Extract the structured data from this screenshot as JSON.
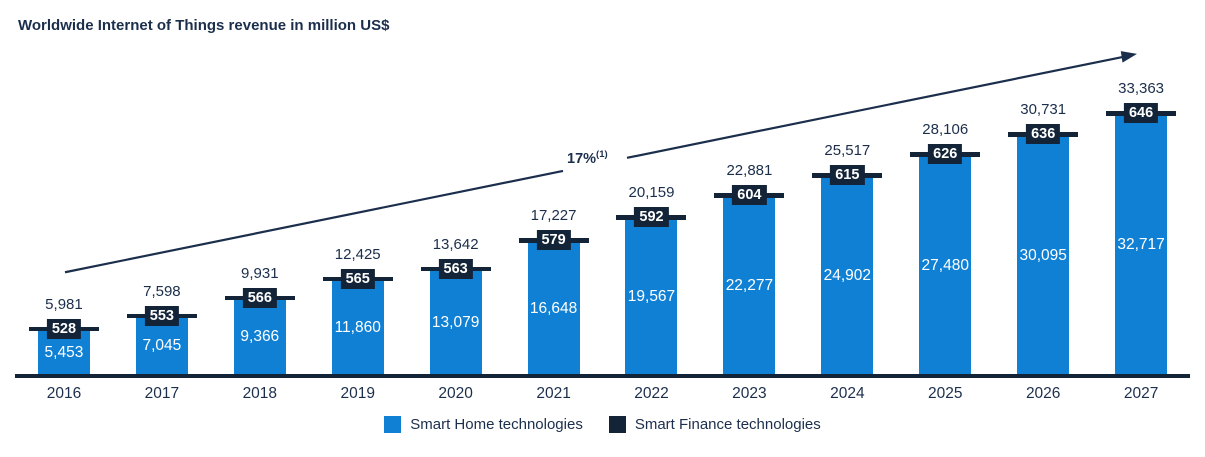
{
  "title": "Worldwide Internet of Things revenue in million US$",
  "annotation": {
    "growth_label": "17%",
    "growth_superscript": "(1)"
  },
  "colors": {
    "home_blue": "#0f80d4",
    "finance_navy": "#142438",
    "text_navy": "#1b2e4b",
    "label_text_white": "#ffffff"
  },
  "legend": [
    {
      "label": "Smart Home technologies",
      "color": "#0f80d4"
    },
    {
      "label": "Smart Finance technologies",
      "color": "#142438"
    }
  ],
  "bars": [
    {
      "year": "2016",
      "total": "5,981",
      "finance": "528",
      "home": "5,453"
    },
    {
      "year": "2017",
      "total": "7,598",
      "finance": "553",
      "home": "7,045"
    },
    {
      "year": "2018",
      "total": "9,931",
      "finance": "566",
      "home": "9,366"
    },
    {
      "year": "2019",
      "total": "12,425",
      "finance": "565",
      "home": "11,860"
    },
    {
      "year": "2020",
      "total": "13,642",
      "finance": "563",
      "home": "13,079"
    },
    {
      "year": "2021",
      "total": "17,227",
      "finance": "579",
      "home": "16,648"
    },
    {
      "year": "2022",
      "total": "20,159",
      "finance": "592",
      "home": "19,567"
    },
    {
      "year": "2023",
      "total": "22,881",
      "finance": "604",
      "home": "22,277"
    },
    {
      "year": "2024",
      "total": "25,517",
      "finance": "615",
      "home": "24,902"
    },
    {
      "year": "2025",
      "total": "28,106",
      "finance": "626",
      "home": "27,480"
    },
    {
      "year": "2026",
      "total": "30,731",
      "finance": "636",
      "home": "30,095"
    },
    {
      "year": "2027",
      "total": "33,363",
      "finance": "646",
      "home": "32,717"
    }
  ],
  "chart_data": {
    "type": "bar",
    "stacked": true,
    "title": "Worldwide Internet of Things revenue in million US$",
    "categories": [
      "2016",
      "2017",
      "2018",
      "2019",
      "2020",
      "2021",
      "2022",
      "2023",
      "2024",
      "2025",
      "2026",
      "2027"
    ],
    "series": [
      {
        "name": "Smart Home technologies",
        "values": [
          5453,
          7045,
          9366,
          11860,
          13079,
          16648,
          19567,
          22277,
          24902,
          27480,
          30095,
          32717
        ]
      },
      {
        "name": "Smart Finance technologies",
        "values": [
          528,
          553,
          566,
          565,
          563,
          579,
          592,
          604,
          615,
          626,
          636,
          646
        ]
      }
    ],
    "totals": [
      5981,
      7598,
      9931,
      12425,
      13642,
      17227,
      20159,
      22881,
      25517,
      28106,
      30731,
      33363
    ],
    "annotations": [
      "17%(1) growth trend arrow from 2016 to 2027"
    ],
    "xlabel": "",
    "ylabel": "Revenue in million US$",
    "ylim": [
      0,
      33363
    ],
    "grid": false,
    "legend_position": "bottom-center"
  }
}
